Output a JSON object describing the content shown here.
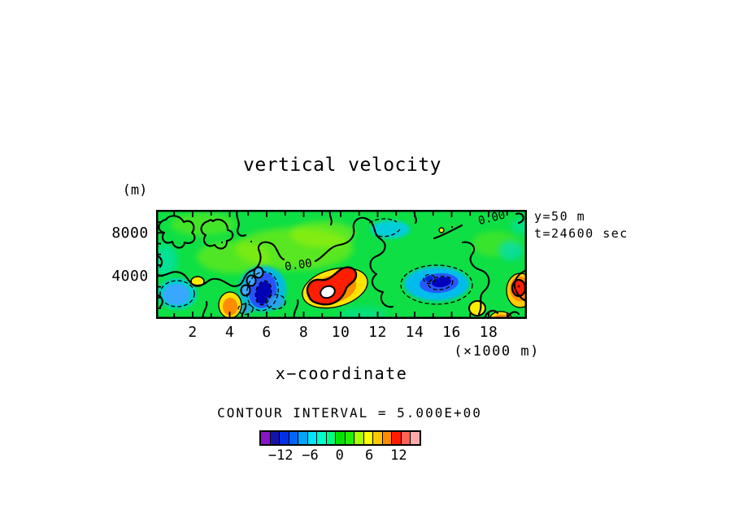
{
  "title": "vertical velocity",
  "axes": {
    "y_unit": "(m)",
    "y_ticks": [
      {
        "label": "8000",
        "value": 8000
      },
      {
        "label": "4000",
        "value": 4000
      }
    ],
    "x_ticks": [
      {
        "label": "2",
        "value": 2
      },
      {
        "label": "4",
        "value": 4
      },
      {
        "label": "6",
        "value": 6
      },
      {
        "label": "8",
        "value": 8
      },
      {
        "label": "10",
        "value": 10
      },
      {
        "label": "12",
        "value": 12
      },
      {
        "label": "14",
        "value": 14
      },
      {
        "label": "16",
        "value": 16
      },
      {
        "label": "18",
        "value": 18
      }
    ],
    "x_unit": "(×1000 m)",
    "xlabel": "x−coordinate"
  },
  "annotations": {
    "line1": "y=50 m",
    "line2": "t=24600 sec"
  },
  "contour_note": "CONTOUR INTERVAL = 5.000E+00",
  "plot_labels": {
    "zero_mid": "0.00",
    "zero_topright": "0.00"
  },
  "colorbar": {
    "colors": [
      "#8a14c8",
      "#1414aa",
      "#0030e6",
      "#0064ff",
      "#00a4ff",
      "#00e6ff",
      "#00ffcc",
      "#00ff80",
      "#00e400",
      "#22f000",
      "#aaff00",
      "#ffff00",
      "#ffc800",
      "#ff8c00",
      "#ff1e00",
      "#ff6455",
      "#ffaaaa"
    ],
    "tick_labels": [
      {
        "text": "−12",
        "boundary": 2
      },
      {
        "text": "−6",
        "boundary": 5
      },
      {
        "text": "0",
        "boundary": 8
      },
      {
        "text": "6",
        "boundary": 11
      },
      {
        "text": "12",
        "boundary": 14
      }
    ]
  },
  "chart_data": {
    "type": "heatmap",
    "subtype": "filled-contour",
    "title": "vertical velocity",
    "xlabel": "x−coordinate",
    "x_units": "×1000 m",
    "y_units": "m",
    "x_range": [
      0,
      20
    ],
    "y_range": [
      0,
      10000
    ],
    "x_ticks": [
      2,
      4,
      6,
      8,
      10,
      12,
      14,
      16,
      18
    ],
    "y_ticks": [
      4000,
      8000
    ],
    "slice_annotation": "y=50 m",
    "time_annotation": "t=24600 sec",
    "line_contour_interval": 5.0,
    "line_contour_labels": [
      "0.00",
      "0.00"
    ],
    "colorbar_levels": {
      "start": -16,
      "step": 2,
      "end": 18,
      "tick_values": [
        -12,
        -6,
        0,
        6,
        12
      ]
    },
    "background_value_range": [
      0,
      4
    ],
    "features": [
      {
        "kind": "max",
        "x_km": 9.4,
        "y_m": 2600,
        "approx_value": 18,
        "desc": "strong updraft core (white center, red/orange/yellow rings)"
      },
      {
        "kind": "min",
        "x_km": 5.8,
        "y_m": 2500,
        "approx_value": -14,
        "desc": "strong downdraft (dark blue core, dashed contours)"
      },
      {
        "kind": "min",
        "x_km": 15.2,
        "y_m": 3100,
        "approx_value": -12,
        "desc": "broad downdraft (blue, dashed contours)"
      },
      {
        "kind": "min",
        "x_km": 1.2,
        "y_m": 2300,
        "approx_value": -6,
        "desc": "weak downdraft (light blue, dashed ring)"
      },
      {
        "kind": "max",
        "x_km": 4.0,
        "y_m": 1400,
        "approx_value": 8,
        "desc": "orange updraft with yellow ring"
      },
      {
        "kind": "max",
        "x_km": 19.5,
        "y_m": 2800,
        "approx_value": 16,
        "desc": "red updraft clipped at right edge"
      },
      {
        "kind": "max",
        "x_km": 17.4,
        "y_m": 1000,
        "approx_value": 4,
        "desc": "small yellow cell"
      },
      {
        "kind": "max",
        "x_km": 2.2,
        "y_m": 3500,
        "approx_value": 4,
        "desc": "small yellow cell"
      },
      {
        "kind": "min",
        "x_km": 12.7,
        "y_m": 8300,
        "approx_value": -4,
        "desc": "weak cyan downdraft aloft (dashed)"
      },
      {
        "kind": "max",
        "x_km": 15.5,
        "y_m": 8300,
        "approx_value": 4,
        "desc": "tiny yellow speck aloft"
      }
    ]
  }
}
